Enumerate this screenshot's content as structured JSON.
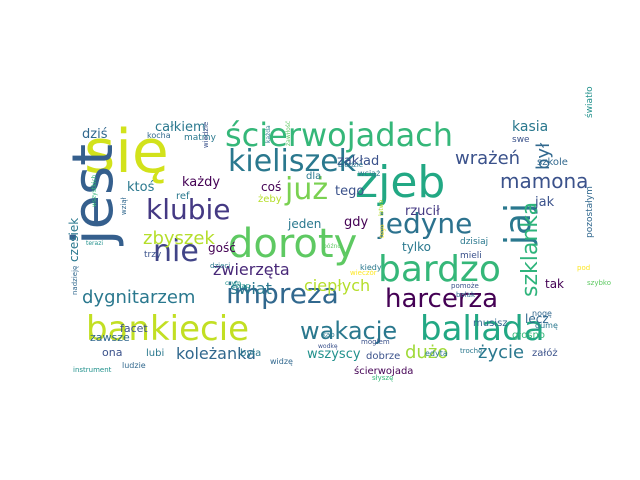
{
  "colors": {
    "background": "#ffffff",
    "palette": [
      "#440154",
      "#3b528b",
      "#21918c",
      "#5ec962",
      "#fde725",
      "#2a788e",
      "#35b779",
      "#b5de2b",
      "#443983"
    ]
  },
  "words": [
    {
      "text": "się",
      "color": "#d2e21b"
    },
    {
      "text": "ścierwojadach",
      "color": "#35b779"
    },
    {
      "text": "jest",
      "color": "#355f8d"
    },
    {
      "text": "zjeb",
      "color": "#22a884"
    },
    {
      "text": "kieliszek",
      "color": "#2a788e"
    },
    {
      "text": "już",
      "color": "#7ad151"
    },
    {
      "text": "klubie",
      "color": "#443983"
    },
    {
      "text": "doroty",
      "color": "#5ec962"
    },
    {
      "text": "jedyne",
      "color": "#2c728e"
    },
    {
      "text": "jaj",
      "color": "#2a788e"
    },
    {
      "text": "bardzo",
      "color": "#35b779"
    },
    {
      "text": "nie",
      "color": "#414487"
    },
    {
      "text": "impreza",
      "color": "#31688e"
    },
    {
      "text": "harcerza",
      "color": "#440154"
    },
    {
      "text": "bankiecie",
      "color": "#c2df23"
    },
    {
      "text": "wakacje",
      "color": "#2a788e"
    },
    {
      "text": "ballada",
      "color": "#22a884"
    },
    {
      "text": "szklanka",
      "color": "#2fb47c"
    },
    {
      "text": "był",
      "color": "#31688e"
    },
    {
      "text": "mamona",
      "color": "#3b528b"
    },
    {
      "text": "wrażeń",
      "color": "#3b528b"
    },
    {
      "text": "zbyszek",
      "color": "#b5de2b"
    },
    {
      "text": "dygnitarzem",
      "color": "#2a788e"
    },
    {
      "text": "zwierzęta",
      "color": "#482878"
    },
    {
      "text": "świat",
      "color": "#2a788e"
    },
    {
      "text": "ciepłych",
      "color": "#b5de2b"
    },
    {
      "text": "koleżanka",
      "color": "#31688e"
    },
    {
      "text": "życie",
      "color": "#2a788e"
    },
    {
      "text": "dużo",
      "color": "#a0da39"
    },
    {
      "text": "kasia",
      "color": "#2a788e"
    },
    {
      "text": "całkiem",
      "color": "#2a788e"
    },
    {
      "text": "dziś",
      "color": "#31688e"
    },
    {
      "text": "każdy",
      "color": "#440154"
    },
    {
      "text": "ktoś",
      "color": "#2a788e"
    },
    {
      "text": "zakład",
      "color": "#3b528b"
    },
    {
      "text": "coś",
      "color": "#440154"
    },
    {
      "text": "tego",
      "color": "#3b528b"
    },
    {
      "text": "gdy",
      "color": "#440154"
    },
    {
      "text": "rzucił",
      "color": "#443983"
    },
    {
      "text": "jak",
      "color": "#3b528b"
    },
    {
      "text": "tak",
      "color": "#440154"
    },
    {
      "text": "lecz",
      "color": "#31688e"
    },
    {
      "text": "tylko",
      "color": "#2a788e"
    },
    {
      "text": "jeden",
      "color": "#2a788e"
    },
    {
      "text": "gość",
      "color": "#440154"
    },
    {
      "text": "czesiek",
      "color": "#2a788e"
    },
    {
      "text": "facet",
      "color": "#3b528b"
    },
    {
      "text": "zawsze",
      "color": "#31688e"
    },
    {
      "text": "ona",
      "color": "#3b528b"
    },
    {
      "text": "wszyscy",
      "color": "#21918c"
    },
    {
      "text": "lubi",
      "color": "#2a788e"
    },
    {
      "text": "była",
      "color": "#2a788e"
    },
    {
      "text": "dobrze",
      "color": "#3b528b"
    },
    {
      "text": "ścierwojada",
      "color": "#440154"
    },
    {
      "text": "musisz",
      "color": "#31688e"
    },
    {
      "text": "głośno",
      "color": "#35b779"
    },
    {
      "text": "załóż",
      "color": "#3b528b"
    },
    {
      "text": "edyta",
      "color": "#2a788e"
    },
    {
      "text": "trzy",
      "color": "#3b528b"
    },
    {
      "text": "ref",
      "color": "#2a788e"
    },
    {
      "text": "żeby",
      "color": "#b5de2b"
    },
    {
      "text": "dla",
      "color": "#2a788e"
    },
    {
      "text": "swe",
      "color": "#3b528b"
    },
    {
      "text": "szkole",
      "color": "#31688e"
    },
    {
      "text": "dzisiaj",
      "color": "#2a788e"
    },
    {
      "text": "pozostałym",
      "color": "#31688e"
    },
    {
      "text": "światło",
      "color": "#21918c"
    },
    {
      "text": "mieli",
      "color": "#3b528b"
    },
    {
      "text": "matmy",
      "color": "#2a788e"
    },
    {
      "text": "kocha",
      "color": "#31688e"
    },
    {
      "text": "wiedzie",
      "color": "#3b528b"
    },
    {
      "text": "wciąż",
      "color": "#2a788e"
    },
    {
      "text": "kiedy",
      "color": "#2a788e"
    },
    {
      "text": "nogę",
      "color": "#31688e"
    },
    {
      "text": "gumę",
      "color": "#2a788e"
    },
    {
      "text": "szybko",
      "color": "#5ec962"
    },
    {
      "text": "pod",
      "color": "#fde725"
    },
    {
      "text": "trochę",
      "color": "#2a788e"
    },
    {
      "text": "instrument",
      "color": "#21918c"
    },
    {
      "text": "ludzie",
      "color": "#31688e"
    },
    {
      "text": "mogłem",
      "color": "#3b528b"
    },
    {
      "text": "kap",
      "color": "#2a788e"
    },
    {
      "text": "widzę",
      "color": "#31688e"
    },
    {
      "text": "wodkę",
      "color": "#3b528b"
    },
    {
      "text": "dzieci",
      "color": "#2a788e"
    },
    {
      "text": "wieczór",
      "color": "#fde725"
    },
    {
      "text": "czym",
      "color": "#21918c"
    },
    {
      "text": "człap",
      "color": "#21918c"
    },
    {
      "text": "nadzieję",
      "color": "#31688e"
    },
    {
      "text": "pomoże",
      "color": "#3b528b"
    },
    {
      "text": "bolak",
      "color": "#31688e"
    },
    {
      "text": "słyszę",
      "color": "#35b779"
    },
    {
      "text": "każda",
      "color": "#2a788e"
    },
    {
      "text": "zawiłość",
      "color": "#5ec962"
    },
    {
      "text": "łatwo",
      "color": "#b5de2b"
    },
    {
      "text": "późno",
      "color": "#5ec962"
    },
    {
      "text": "tego",
      "color": "#fde725"
    },
    {
      "text": "biedzie",
      "color": "#2a788e"
    },
    {
      "text": "wziął",
      "color": "#31688e"
    },
    {
      "text": "terazi",
      "color": "#21918c"
    },
    {
      "text": "wszystkich",
      "color": "#35b779"
    }
  ]
}
